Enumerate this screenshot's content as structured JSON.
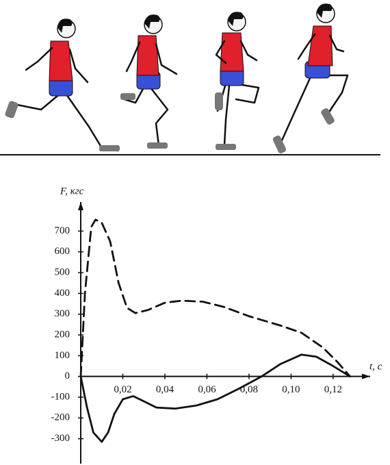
{
  "chart_data": {
    "type": "line",
    "y_label": "F, кгс",
    "x_label": "t, с",
    "xlim": [
      0,
      0.135
    ],
    "ylim": [
      -420,
      840
    ],
    "xticks": [
      {
        "value": 0.02,
        "label": "0,02"
      },
      {
        "value": 0.04,
        "label": "0,04"
      },
      {
        "value": 0.06,
        "label": "0,06"
      },
      {
        "value": 0.08,
        "label": "0,08"
      },
      {
        "value": 0.1,
        "label": "0,10"
      },
      {
        "value": 0.12,
        "label": "0,12"
      }
    ],
    "yticks": [
      -300,
      -200,
      -100,
      0,
      100,
      200,
      300,
      400,
      500,
      600,
      700
    ],
    "series": [
      {
        "color": "#111111",
        "dash": true,
        "x": [
          0,
          0.002,
          0.005,
          0.007,
          0.01,
          0.014,
          0.018,
          0.022,
          0.026,
          0.032,
          0.04,
          0.048,
          0.058,
          0.068,
          0.08,
          0.095,
          0.105,
          0.115,
          0.122,
          0.128
        ],
        "values": [
          0,
          400,
          720,
          755,
          740,
          650,
          450,
          330,
          305,
          320,
          355,
          365,
          360,
          335,
          290,
          245,
          210,
          140,
          70,
          0
        ]
      },
      {
        "color": "#111111",
        "dash": false,
        "x": [
          0,
          0.003,
          0.006,
          0.01,
          0.013,
          0.016,
          0.02,
          0.025,
          0.03,
          0.036,
          0.045,
          0.055,
          0.065,
          0.075,
          0.086,
          0.095,
          0.105,
          0.112,
          0.12,
          0.128
        ],
        "values": [
          0,
          -150,
          -270,
          -315,
          -270,
          -180,
          -110,
          -95,
          -120,
          -150,
          -155,
          -140,
          -110,
          -60,
          0,
          60,
          105,
          95,
          50,
          0
        ]
      }
    ]
  }
}
